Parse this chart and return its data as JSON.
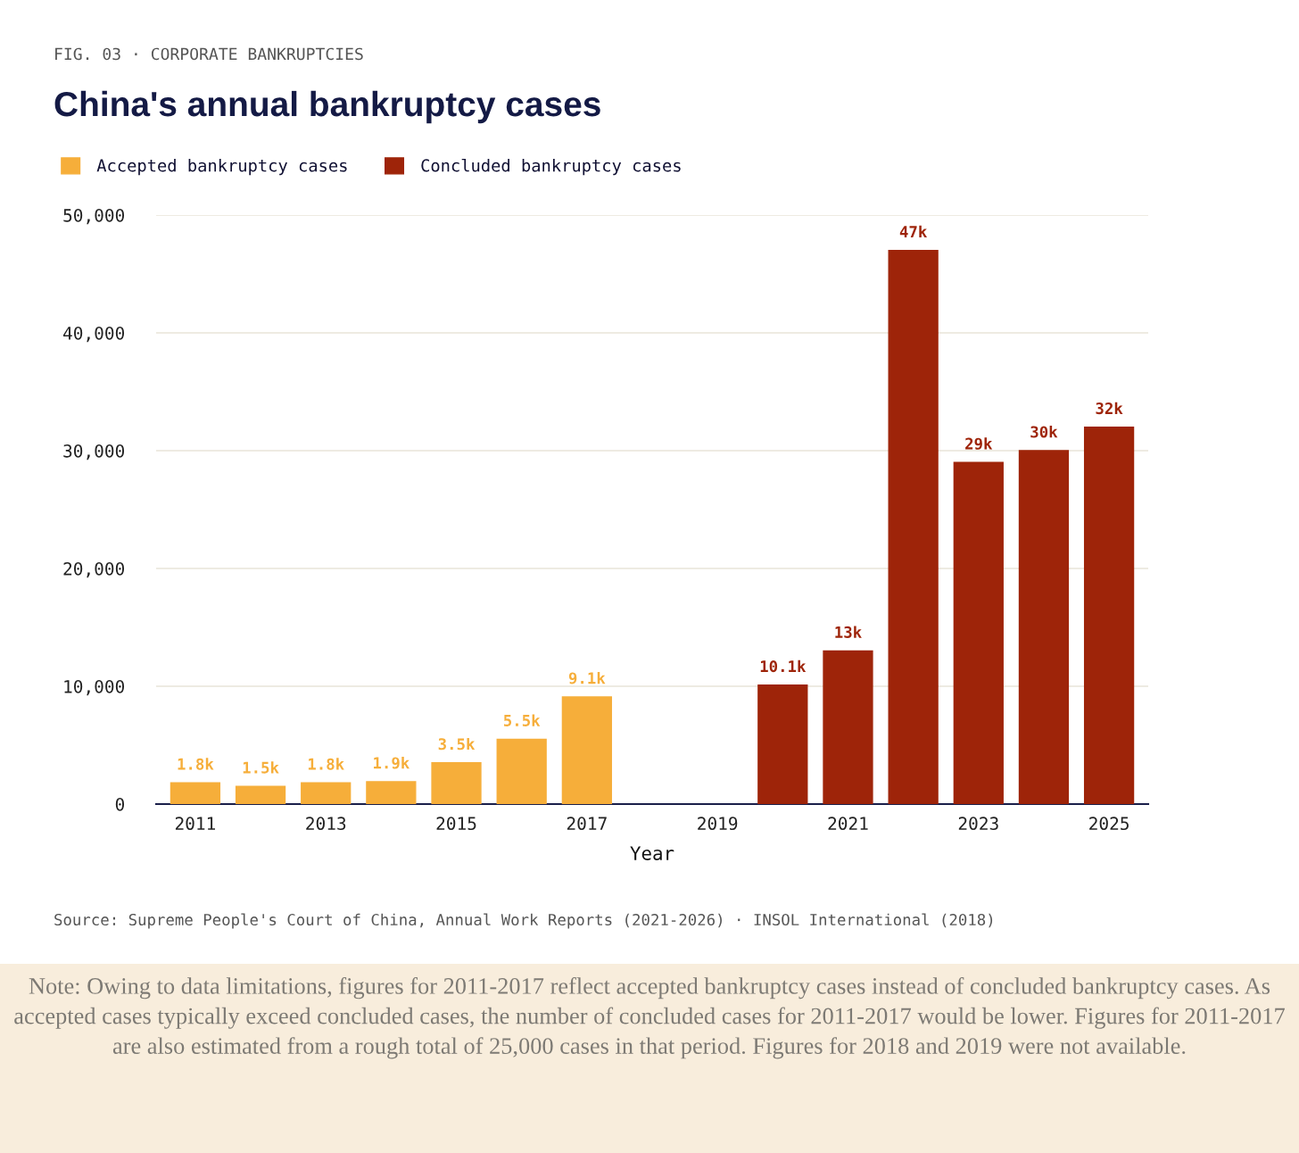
{
  "chart_data": {
    "type": "bar",
    "subtitle": "FIG. 03 · CORPORATE BANKRUPTCIES",
    "title": "China's annual bankruptcy cases",
    "xlabel": "Year",
    "categories": [
      "2011",
      null,
      "2013",
      null,
      "2015",
      null,
      "2017",
      null,
      "2019",
      null,
      "2021",
      null,
      "2023",
      null,
      "2025"
    ],
    "series": [
      {
        "name": "Accepted bankruptcy cases",
        "color": "#f6ae3a",
        "values": [
          1800,
          1500,
          1800,
          1900,
          3500,
          5500,
          9100,
          null,
          null,
          null,
          null,
          null,
          null,
          null,
          null
        ],
        "value_labels": [
          "1.8k",
          "1.5k",
          "1.8k",
          "1.9k",
          "3.5k",
          "5.5k",
          "9.1k",
          null,
          null,
          null,
          null,
          null,
          null,
          null,
          null
        ]
      },
      {
        "name": "Concluded bankruptcy cases",
        "color": "#9e2409",
        "values": [
          null,
          null,
          null,
          null,
          null,
          null,
          null,
          null,
          null,
          10100,
          13000,
          47000,
          29000,
          30000,
          32000
        ],
        "value_labels": [
          null,
          null,
          null,
          null,
          null,
          null,
          null,
          null,
          null,
          "10.1k",
          "13k",
          "47k",
          "29k",
          "30k",
          "32k"
        ]
      }
    ],
    "ylim": [
      0,
      50000
    ],
    "yticks": [
      0,
      {
        "value": 10000,
        "label": "10,000"
      },
      {
        "value": 20000,
        "label": "20,000"
      },
      {
        "value": 30000,
        "label": "30,000"
      },
      {
        "value": 40000,
        "label": "40,000"
      },
      {
        "value": 50000,
        "label": "50,000"
      }
    ],
    "grid": "y",
    "legend": "top left",
    "annotations": [
      "Source: Supreme People's Court of China, Annual Work Reports (2021-2026) · INSOL International (2018)",
      "Note: Owing to data limitations, figures for 2011-2017 reflect accepted bankruptcy cases instead of concluded bankruptcy cases. As accepted cases typically exceed concluded cases, the number of concluded cases for 2011-2017 would be lower. Figures for 2011-2017 are also estimated from a rough total of 25,000 cases in that period. Figures for 2018 and 2019 were not available."
    ]
  }
}
